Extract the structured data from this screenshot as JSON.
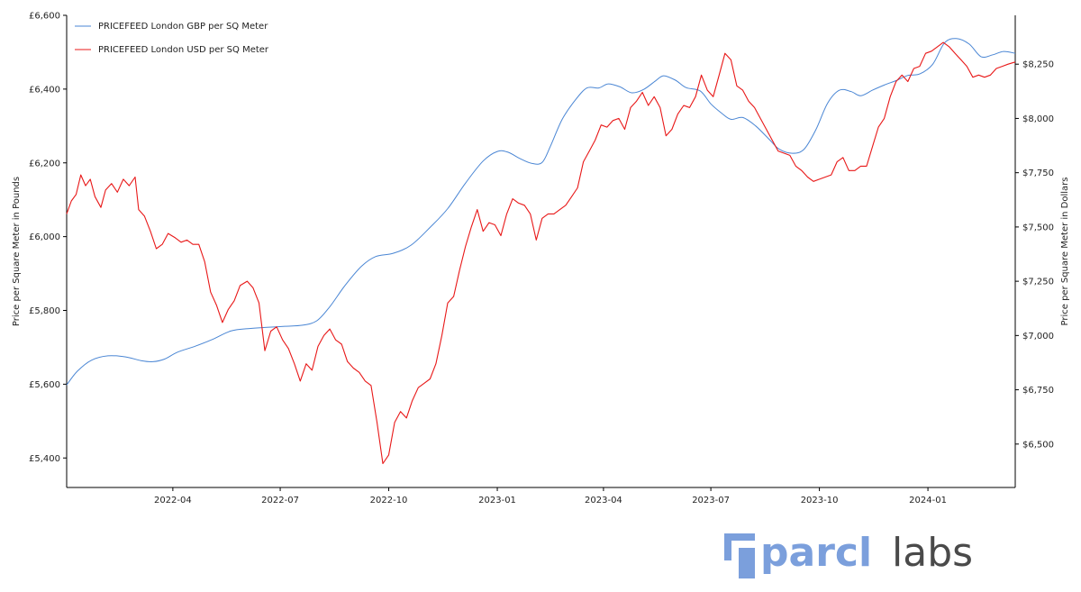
{
  "chart_data": {
    "type": "line",
    "x_axis": {
      "type": "date",
      "ticks": [
        "2022-04-01",
        "2022-07-01",
        "2022-10-01",
        "2023-01-01",
        "2023-04-01",
        "2023-07-01",
        "2023-10-01",
        "2024-01-01"
      ],
      "tick_labels": [
        "2022-04",
        "2022-07",
        "2022-10",
        "2023-01",
        "2023-04",
        "2023-07",
        "2023-10",
        "2024-01"
      ],
      "range": [
        "2022-01-01",
        "2024-03-15"
      ]
    },
    "left_axis": {
      "label": "Price per Square Meter in Pounds",
      "range": [
        5320,
        6600
      ],
      "ticks": [
        5400,
        5600,
        5800,
        6000,
        6200,
        6400,
        6600
      ],
      "tick_labels": [
        "£5,400",
        "£5,600",
        "£5,800",
        "£6,000",
        "£6,200",
        "£6,400",
        "£6,600"
      ]
    },
    "right_axis": {
      "label": "Price per Square Meter in Dollars",
      "range": [
        6300,
        8475
      ],
      "ticks": [
        6500,
        6750,
        7000,
        7250,
        7500,
        7750,
        8000,
        8250
      ],
      "tick_labels": [
        "$6,500",
        "$6,750",
        "$7,000",
        "$7,250",
        "$7,500",
        "$7,750",
        "$8,000",
        "$8,250"
      ]
    },
    "grid": false,
    "legend": "top-left",
    "series": [
      {
        "name": "PRICEFEED London GBP per SQ Meter",
        "axis": "left",
        "color": "#4a86d4",
        "points": [
          [
            "2022-01-01",
            5598
          ],
          [
            "2022-01-10",
            5635
          ],
          [
            "2022-01-22",
            5665
          ],
          [
            "2022-02-05",
            5677
          ],
          [
            "2022-02-20",
            5674
          ],
          [
            "2022-03-05",
            5664
          ],
          [
            "2022-03-15",
            5661
          ],
          [
            "2022-03-25",
            5668
          ],
          [
            "2022-04-05",
            5687
          ],
          [
            "2022-04-20",
            5703
          ],
          [
            "2022-05-05",
            5722
          ],
          [
            "2022-05-20",
            5744
          ],
          [
            "2022-06-05",
            5751
          ],
          [
            "2022-06-20",
            5754
          ],
          [
            "2022-07-05",
            5757
          ],
          [
            "2022-07-20",
            5760
          ],
          [
            "2022-08-01",
            5772
          ],
          [
            "2022-08-12",
            5810
          ],
          [
            "2022-08-25",
            5868
          ],
          [
            "2022-09-08",
            5920
          ],
          [
            "2022-09-20",
            5946
          ],
          [
            "2022-10-05",
            5955
          ],
          [
            "2022-10-20",
            5977
          ],
          [
            "2022-11-05",
            6025
          ],
          [
            "2022-11-20",
            6076
          ],
          [
            "2022-12-05",
            6145
          ],
          [
            "2022-12-20",
            6205
          ],
          [
            "2023-01-01",
            6231
          ],
          [
            "2023-01-10",
            6229
          ],
          [
            "2023-01-20",
            6212
          ],
          [
            "2023-01-30",
            6199
          ],
          [
            "2023-02-08",
            6201
          ],
          [
            "2023-02-15",
            6245
          ],
          [
            "2023-02-25",
            6318
          ],
          [
            "2023-03-08",
            6370
          ],
          [
            "2023-03-18",
            6403
          ],
          [
            "2023-03-28",
            6403
          ],
          [
            "2023-04-05",
            6414
          ],
          [
            "2023-04-15",
            6406
          ],
          [
            "2023-04-25",
            6390
          ],
          [
            "2023-05-05",
            6399
          ],
          [
            "2023-05-15",
            6422
          ],
          [
            "2023-05-22",
            6436
          ],
          [
            "2023-06-01",
            6424
          ],
          [
            "2023-06-10",
            6404
          ],
          [
            "2023-06-22",
            6395
          ],
          [
            "2023-07-01",
            6360
          ],
          [
            "2023-07-10",
            6335
          ],
          [
            "2023-07-18",
            6318
          ],
          [
            "2023-07-28",
            6323
          ],
          [
            "2023-08-08",
            6300
          ],
          [
            "2023-08-20",
            6262
          ],
          [
            "2023-08-28",
            6237
          ],
          [
            "2023-09-08",
            6226
          ],
          [
            "2023-09-18",
            6237
          ],
          [
            "2023-09-28",
            6290
          ],
          [
            "2023-10-08",
            6362
          ],
          [
            "2023-10-18",
            6397
          ],
          [
            "2023-10-28",
            6393
          ],
          [
            "2023-11-05",
            6382
          ],
          [
            "2023-11-15",
            6397
          ],
          [
            "2023-11-25",
            6411
          ],
          [
            "2023-12-05",
            6423
          ],
          [
            "2023-12-15",
            6437
          ],
          [
            "2023-12-25",
            6441
          ],
          [
            "2024-01-05",
            6467
          ],
          [
            "2024-01-15",
            6525
          ],
          [
            "2024-01-25",
            6537
          ],
          [
            "2024-02-05",
            6522
          ],
          [
            "2024-02-15",
            6488
          ],
          [
            "2024-02-25",
            6493
          ],
          [
            "2024-03-05",
            6502
          ],
          [
            "2024-03-15",
            6497
          ]
        ]
      },
      {
        "name": "PRICEFEED London USD per SQ Meter",
        "axis": "right",
        "color": "#e81818",
        "points": [
          [
            "2022-01-01",
            7560
          ],
          [
            "2022-01-05",
            7620
          ],
          [
            "2022-01-09",
            7650
          ],
          [
            "2022-01-13",
            7740
          ],
          [
            "2022-01-17",
            7690
          ],
          [
            "2022-01-21",
            7720
          ],
          [
            "2022-01-25",
            7640
          ],
          [
            "2022-01-30",
            7590
          ],
          [
            "2022-02-03",
            7670
          ],
          [
            "2022-02-08",
            7700
          ],
          [
            "2022-02-13",
            7660
          ],
          [
            "2022-02-18",
            7720
          ],
          [
            "2022-02-23",
            7690
          ],
          [
            "2022-02-28",
            7730
          ],
          [
            "2022-03-03",
            7580
          ],
          [
            "2022-03-08",
            7550
          ],
          [
            "2022-03-13",
            7480
          ],
          [
            "2022-03-18",
            7400
          ],
          [
            "2022-03-23",
            7420
          ],
          [
            "2022-03-28",
            7470
          ],
          [
            "2022-04-03",
            7450
          ],
          [
            "2022-04-08",
            7430
          ],
          [
            "2022-04-13",
            7440
          ],
          [
            "2022-04-18",
            7420
          ],
          [
            "2022-04-23",
            7420
          ],
          [
            "2022-04-28",
            7340
          ],
          [
            "2022-05-03",
            7200
          ],
          [
            "2022-05-08",
            7140
          ],
          [
            "2022-05-13",
            7060
          ],
          [
            "2022-05-18",
            7120
          ],
          [
            "2022-05-23",
            7160
          ],
          [
            "2022-05-28",
            7230
          ],
          [
            "2022-06-03",
            7250
          ],
          [
            "2022-06-08",
            7220
          ],
          [
            "2022-06-13",
            7150
          ],
          [
            "2022-06-18",
            6930
          ],
          [
            "2022-06-23",
            7020
          ],
          [
            "2022-06-28",
            7040
          ],
          [
            "2022-07-03",
            6980
          ],
          [
            "2022-07-08",
            6940
          ],
          [
            "2022-07-13",
            6870
          ],
          [
            "2022-07-18",
            6790
          ],
          [
            "2022-07-23",
            6870
          ],
          [
            "2022-07-28",
            6840
          ],
          [
            "2022-08-02",
            6950
          ],
          [
            "2022-08-07",
            7000
          ],
          [
            "2022-08-12",
            7030
          ],
          [
            "2022-08-17",
            6980
          ],
          [
            "2022-08-22",
            6960
          ],
          [
            "2022-08-27",
            6880
          ],
          [
            "2022-09-01",
            6850
          ],
          [
            "2022-09-06",
            6830
          ],
          [
            "2022-09-11",
            6790
          ],
          [
            "2022-09-16",
            6770
          ],
          [
            "2022-09-21",
            6600
          ],
          [
            "2022-09-26",
            6410
          ],
          [
            "2022-10-01",
            6450
          ],
          [
            "2022-10-06",
            6600
          ],
          [
            "2022-10-11",
            6650
          ],
          [
            "2022-10-16",
            6620
          ],
          [
            "2022-10-21",
            6700
          ],
          [
            "2022-10-26",
            6760
          ],
          [
            "2022-10-31",
            6780
          ],
          [
            "2022-11-05",
            6800
          ],
          [
            "2022-11-10",
            6870
          ],
          [
            "2022-11-15",
            7000
          ],
          [
            "2022-11-20",
            7150
          ],
          [
            "2022-11-25",
            7180
          ],
          [
            "2022-11-30",
            7300
          ],
          [
            "2022-12-05",
            7410
          ],
          [
            "2022-12-10",
            7500
          ],
          [
            "2022-12-15",
            7580
          ],
          [
            "2022-12-20",
            7480
          ],
          [
            "2022-12-25",
            7520
          ],
          [
            "2022-12-30",
            7510
          ],
          [
            "2023-01-04",
            7460
          ],
          [
            "2023-01-09",
            7560
          ],
          [
            "2023-01-14",
            7630
          ],
          [
            "2023-01-19",
            7610
          ],
          [
            "2023-01-24",
            7600
          ],
          [
            "2023-01-29",
            7560
          ],
          [
            "2023-02-03",
            7440
          ],
          [
            "2023-02-08",
            7540
          ],
          [
            "2023-02-13",
            7560
          ],
          [
            "2023-02-18",
            7560
          ],
          [
            "2023-02-23",
            7580
          ],
          [
            "2023-02-28",
            7600
          ],
          [
            "2023-03-05",
            7640
          ],
          [
            "2023-03-10",
            7680
          ],
          [
            "2023-03-15",
            7800
          ],
          [
            "2023-03-20",
            7850
          ],
          [
            "2023-03-25",
            7900
          ],
          [
            "2023-03-30",
            7970
          ],
          [
            "2023-04-04",
            7960
          ],
          [
            "2023-04-09",
            7990
          ],
          [
            "2023-04-14",
            8000
          ],
          [
            "2023-04-19",
            7950
          ],
          [
            "2023-04-24",
            8050
          ],
          [
            "2023-04-29",
            8080
          ],
          [
            "2023-05-04",
            8120
          ],
          [
            "2023-05-09",
            8060
          ],
          [
            "2023-05-14",
            8100
          ],
          [
            "2023-05-19",
            8050
          ],
          [
            "2023-05-24",
            7920
          ],
          [
            "2023-05-29",
            7950
          ],
          [
            "2023-06-03",
            8020
          ],
          [
            "2023-06-08",
            8060
          ],
          [
            "2023-06-13",
            8050
          ],
          [
            "2023-06-18",
            8100
          ],
          [
            "2023-06-23",
            8200
          ],
          [
            "2023-06-28",
            8130
          ],
          [
            "2023-07-03",
            8100
          ],
          [
            "2023-07-08",
            8200
          ],
          [
            "2023-07-13",
            8300
          ],
          [
            "2023-07-18",
            8270
          ],
          [
            "2023-07-23",
            8150
          ],
          [
            "2023-07-28",
            8130
          ],
          [
            "2023-08-02",
            8080
          ],
          [
            "2023-08-07",
            8050
          ],
          [
            "2023-08-12",
            8000
          ],
          [
            "2023-08-17",
            7950
          ],
          [
            "2023-08-22",
            7900
          ],
          [
            "2023-08-27",
            7850
          ],
          [
            "2023-09-01",
            7840
          ],
          [
            "2023-09-06",
            7830
          ],
          [
            "2023-09-11",
            7780
          ],
          [
            "2023-09-16",
            7760
          ],
          [
            "2023-09-21",
            7730
          ],
          [
            "2023-09-26",
            7710
          ],
          [
            "2023-10-01",
            7720
          ],
          [
            "2023-10-06",
            7730
          ],
          [
            "2023-10-11",
            7740
          ],
          [
            "2023-10-16",
            7800
          ],
          [
            "2023-10-21",
            7820
          ],
          [
            "2023-10-26",
            7760
          ],
          [
            "2023-10-31",
            7760
          ],
          [
            "2023-11-05",
            7780
          ],
          [
            "2023-11-10",
            7780
          ],
          [
            "2023-11-15",
            7870
          ],
          [
            "2023-11-20",
            7960
          ],
          [
            "2023-11-25",
            8000
          ],
          [
            "2023-11-30",
            8100
          ],
          [
            "2023-12-05",
            8170
          ],
          [
            "2023-12-10",
            8200
          ],
          [
            "2023-12-15",
            8170
          ],
          [
            "2023-12-20",
            8230
          ],
          [
            "2023-12-25",
            8240
          ],
          [
            "2023-12-30",
            8300
          ],
          [
            "2024-01-04",
            8310
          ],
          [
            "2024-01-09",
            8330
          ],
          [
            "2024-01-14",
            8350
          ],
          [
            "2024-01-19",
            8330
          ],
          [
            "2024-01-24",
            8300
          ],
          [
            "2024-01-29",
            8270
          ],
          [
            "2024-02-03",
            8240
          ],
          [
            "2024-02-08",
            8190
          ],
          [
            "2024-02-13",
            8200
          ],
          [
            "2024-02-18",
            8190
          ],
          [
            "2024-02-23",
            8200
          ],
          [
            "2024-02-28",
            8230
          ],
          [
            "2024-03-04",
            8240
          ],
          [
            "2024-03-09",
            8250
          ],
          [
            "2024-03-15",
            8260
          ]
        ]
      }
    ]
  },
  "logo": {
    "word1": "parcl",
    "word2": "labs",
    "word1_color": "#7b9fdc",
    "word2_color": "#4a4a4a"
  }
}
